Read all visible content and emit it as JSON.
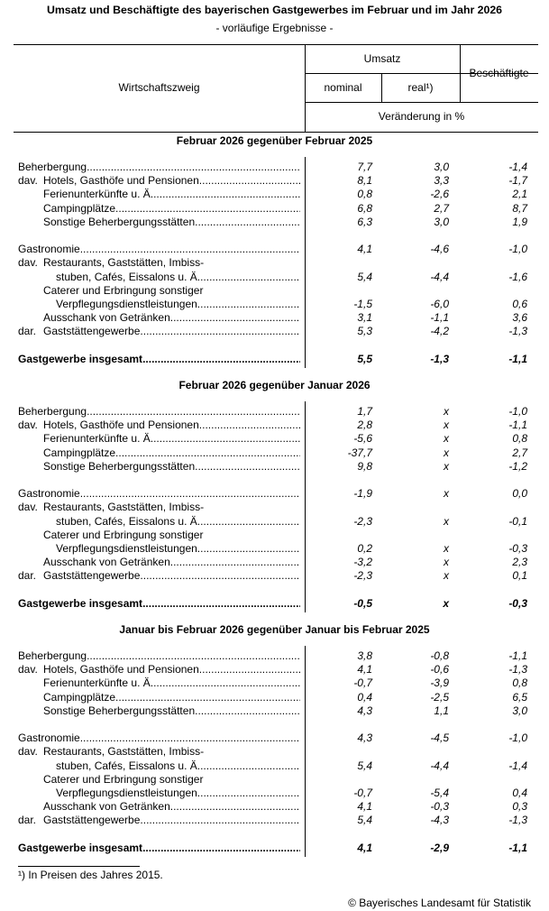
{
  "title": "Umsatz und Beschäftigte des bayerischen Gastgewerbes im Februar und im Jahr 2026",
  "subtitle": "- vorläufige Ergebnisse -",
  "header": {
    "wirtschaftszweig": "Wirtschaftszweig",
    "umsatz": "Umsatz",
    "nominal": "nominal",
    "real": "real¹)",
    "beschaeftigte": "Beschäftigte",
    "unit": "Veränderung in %"
  },
  "sections": [
    {
      "title": "Februar 2026 gegenüber Februar 2025",
      "rows": [
        {
          "pre": "",
          "label": "Beherbergung",
          "level": 0,
          "values": [
            "7,7",
            "3,0",
            "-1,4"
          ]
        },
        {
          "pre": "dav.",
          "label": "Hotels, Gasthöfe und Pensionen",
          "level": 1,
          "values": [
            "8,1",
            "3,3",
            "-1,7"
          ]
        },
        {
          "pre": "",
          "label": "Ferienunterkünfte u. Ä.",
          "level": 1,
          "values": [
            "0,8",
            "-2,6",
            "2,1"
          ]
        },
        {
          "pre": "",
          "label": "Campingplätze",
          "level": 1,
          "values": [
            "6,8",
            "2,7",
            "8,7"
          ]
        },
        {
          "pre": "",
          "label": "Sonstige Beherbergungsstätten",
          "level": 1,
          "values": [
            "6,3",
            "3,0",
            "1,9"
          ]
        },
        {
          "blank": true
        },
        {
          "pre": "",
          "label": "Gastronomie",
          "level": 0,
          "values": [
            "4,1",
            "-4,6",
            "-1,0"
          ]
        },
        {
          "pre": "dav.",
          "label": "Restaurants, Gaststätten, Imbiss-",
          "level": 1,
          "nodots": true
        },
        {
          "pre": "",
          "label": "stuben, Cafés, Eissalons u. Ä.",
          "level": 2,
          "values": [
            "5,4",
            "-4,4",
            "-1,6"
          ]
        },
        {
          "pre": "",
          "label": "Caterer und Erbringung sonstiger",
          "level": 1,
          "nodots": true
        },
        {
          "pre": "",
          "label": "Verpflegungsdienstleistungen",
          "level": 2,
          "values": [
            "-1,5",
            "-6,0",
            "0,6"
          ]
        },
        {
          "pre": "",
          "label": "Ausschank von Getränken",
          "level": 1,
          "values": [
            "3,1",
            "-1,1",
            "3,6"
          ]
        },
        {
          "pre": "dar.",
          "label": "Gaststättengewerbe",
          "level": 1,
          "values": [
            "5,3",
            "-4,2",
            "-1,3"
          ]
        },
        {
          "blank": true
        },
        {
          "pre": "",
          "label": "Gastgewerbe insgesamt",
          "level": 0,
          "bold": true,
          "values": [
            "5,5",
            "-1,3",
            "-1,1"
          ]
        }
      ]
    },
    {
      "title": "Februar 2026 gegenüber Januar 2026",
      "rows": [
        {
          "pre": "",
          "label": "Beherbergung",
          "level": 0,
          "values": [
            "1,7",
            "x",
            "-1,0"
          ]
        },
        {
          "pre": "dav.",
          "label": "Hotels, Gasthöfe und Pensionen",
          "level": 1,
          "values": [
            "2,8",
            "x",
            "-1,1"
          ]
        },
        {
          "pre": "",
          "label": "Ferienunterkünfte u. Ä.",
          "level": 1,
          "values": [
            "-5,6",
            "x",
            "0,8"
          ]
        },
        {
          "pre": "",
          "label": "Campingplätze",
          "level": 1,
          "values": [
            "-37,7",
            "x",
            "2,7"
          ]
        },
        {
          "pre": "",
          "label": "Sonstige Beherbergungsstätten",
          "level": 1,
          "values": [
            "9,8",
            "x",
            "-1,2"
          ]
        },
        {
          "blank": true
        },
        {
          "pre": "",
          "label": "Gastronomie",
          "level": 0,
          "values": [
            "-1,9",
            "x",
            "0,0"
          ]
        },
        {
          "pre": "dav.",
          "label": "Restaurants, Gaststätten, Imbiss-",
          "level": 1,
          "nodots": true
        },
        {
          "pre": "",
          "label": "stuben, Cafés, Eissalons u. Ä.",
          "level": 2,
          "values": [
            "-2,3",
            "x",
            "-0,1"
          ]
        },
        {
          "pre": "",
          "label": "Caterer und Erbringung sonstiger",
          "level": 1,
          "nodots": true
        },
        {
          "pre": "",
          "label": "Verpflegungsdienstleistungen",
          "level": 2,
          "values": [
            "0,2",
            "x",
            "-0,3"
          ]
        },
        {
          "pre": "",
          "label": "Ausschank von Getränken",
          "level": 1,
          "values": [
            "-3,2",
            "x",
            "2,3"
          ]
        },
        {
          "pre": "dar.",
          "label": "Gaststättengewerbe",
          "level": 1,
          "values": [
            "-2,3",
            "x",
            "0,1"
          ]
        },
        {
          "blank": true
        },
        {
          "pre": "",
          "label": "Gastgewerbe insgesamt",
          "level": 0,
          "bold": true,
          "values": [
            "-0,5",
            "x",
            "-0,3"
          ]
        }
      ]
    },
    {
      "title": "Januar bis Februar 2026 gegenüber Januar bis Februar 2025",
      "rows": [
        {
          "pre": "",
          "label": "Beherbergung",
          "level": 0,
          "values": [
            "3,8",
            "-0,8",
            "-1,1"
          ]
        },
        {
          "pre": "dav.",
          "label": "Hotels, Gasthöfe und Pensionen",
          "level": 1,
          "values": [
            "4,1",
            "-0,6",
            "-1,3"
          ]
        },
        {
          "pre": "",
          "label": "Ferienunterkünfte u. Ä.",
          "level": 1,
          "values": [
            "-0,7",
            "-3,9",
            "0,8"
          ]
        },
        {
          "pre": "",
          "label": "Campingplätze",
          "level": 1,
          "values": [
            "0,4",
            "-2,5",
            "6,5"
          ]
        },
        {
          "pre": "",
          "label": "Sonstige Beherbergungsstätten",
          "level": 1,
          "values": [
            "4,3",
            "1,1",
            "3,0"
          ]
        },
        {
          "blank": true
        },
        {
          "pre": "",
          "label": "Gastronomie",
          "level": 0,
          "values": [
            "4,3",
            "-4,5",
            "-1,0"
          ]
        },
        {
          "pre": "dav.",
          "label": "Restaurants, Gaststätten, Imbiss-",
          "level": 1,
          "nodots": true
        },
        {
          "pre": "",
          "label": "stuben, Cafés, Eissalons u. Ä.",
          "level": 2,
          "values": [
            "5,4",
            "-4,4",
            "-1,4"
          ]
        },
        {
          "pre": "",
          "label": "Caterer und Erbringung sonstiger",
          "level": 1,
          "nodots": true
        },
        {
          "pre": "",
          "label": "Verpflegungsdienstleistungen",
          "level": 2,
          "values": [
            "-0,7",
            "-5,4",
            "0,4"
          ]
        },
        {
          "pre": "",
          "label": "Ausschank von Getränken",
          "level": 1,
          "values": [
            "4,1",
            "-0,3",
            "0,3"
          ]
        },
        {
          "pre": "dar.",
          "label": "Gaststättengewerbe",
          "level": 1,
          "values": [
            "5,4",
            "-4,3",
            "-1,3"
          ]
        },
        {
          "blank": true
        },
        {
          "pre": "",
          "label": "Gastgewerbe insgesamt",
          "level": 0,
          "bold": true,
          "values": [
            "4,1",
            "-2,9",
            "-1,1"
          ]
        }
      ]
    }
  ],
  "footnote": "¹) In Preisen des Jahres 2015.",
  "copyright": "© Bayerisches Landesamt für Statistik"
}
